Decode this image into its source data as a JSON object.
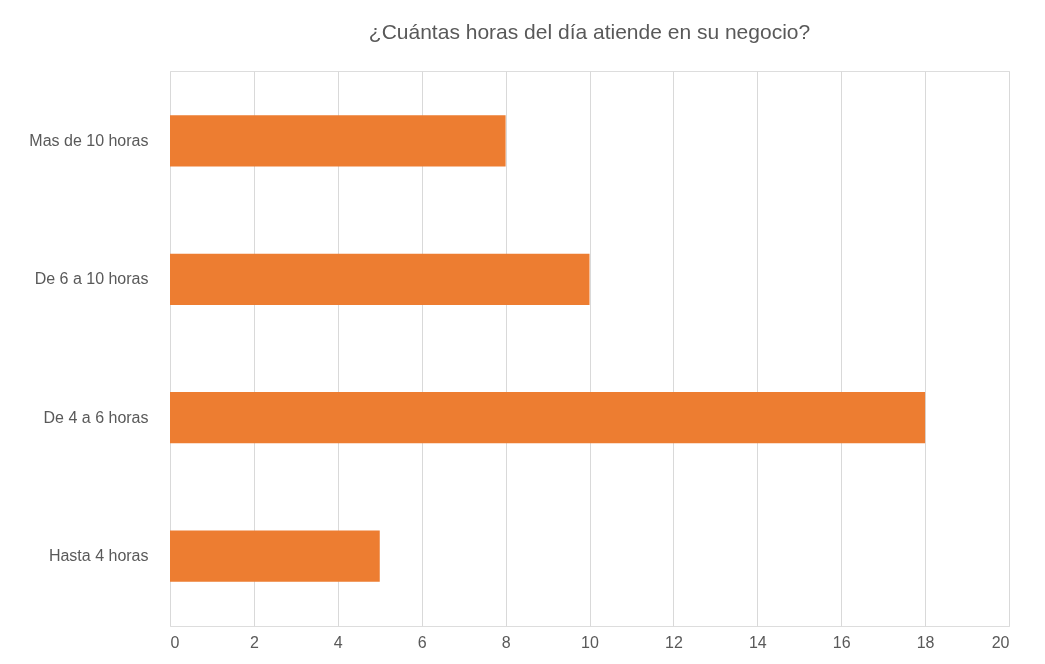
{
  "chart_data": {
    "type": "bar",
    "orientation": "horizontal",
    "title": "¿Cuántas horas del día atiende en su negocio?",
    "categories": [
      "Mas de 10 horas",
      "De 6 a 10 horas",
      "De 4 a 6 horas",
      "Hasta 4 horas"
    ],
    "values": [
      8,
      10,
      18,
      5
    ],
    "color": "#ed7d31",
    "xlim": [
      0,
      20
    ],
    "xticks": [
      0,
      2,
      4,
      6,
      8,
      10,
      12,
      14,
      16,
      18,
      20
    ],
    "grid": "x"
  }
}
